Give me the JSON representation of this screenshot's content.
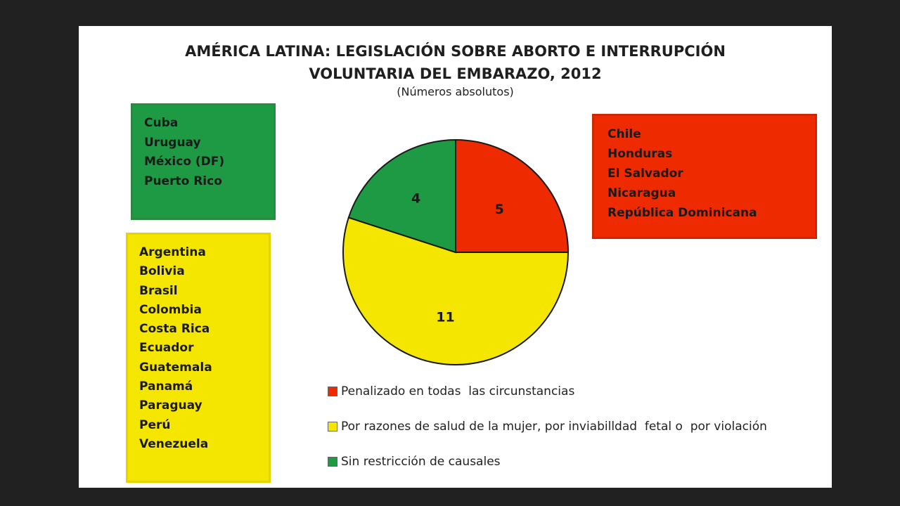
{
  "chart_data": {
    "type": "pie",
    "title": "AMÉRICA LATINA: LEGISLACIÓN SOBRE ABORTO E INTERRUPCIÓN VOLUNTARIA DEL EMBARAZO, 2012",
    "title_lines": [
      "AMÉRICA LATINA: LEGISLACIÓN SOBRE ABORTO E INTERRUPCIÓN",
      "VOLUNTARIA DEL EMBARAZO, 2012"
    ],
    "subtitle": "(Números absolutos)",
    "categories": [
      "Penalizado en todas  las circunstancias",
      "Por razones de salud de la mujer, por inviabilldad  fetal o  por violación",
      "Sin restricción de causales"
    ],
    "values": [
      5,
      11,
      4
    ],
    "colors": [
      "#ee2a00",
      "#f5e600",
      "#1e9a44"
    ],
    "legend_position": "bottom",
    "data_labels": [
      "5",
      "11",
      "4"
    ]
  },
  "country_lists": {
    "green": [
      "Cuba",
      "Uruguay",
      "México (DF)",
      "Puerto Rico"
    ],
    "yellow": [
      "Argentina",
      "Bolivia",
      "Brasil",
      "Colombia",
      "Costa Rica",
      "Ecuador",
      "Guatemala",
      "Panamá",
      "Paraguay",
      "Perú",
      "Venezuela"
    ],
    "red": [
      "Chile",
      "Honduras",
      "El Salvador",
      "Nicaragua",
      "República Dominicana"
    ]
  }
}
